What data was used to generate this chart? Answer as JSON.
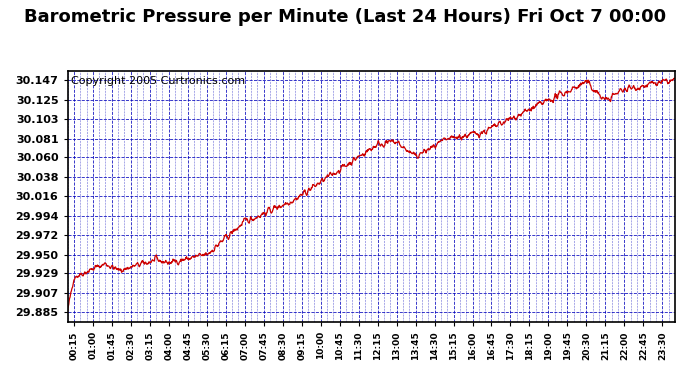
{
  "title": "Barometric Pressure per Minute (Last 24 Hours) Fri Oct 7 00:00",
  "copyright": "Copyright 2005 Curtronics.com",
  "yticks": [
    29.885,
    29.907,
    29.929,
    29.95,
    29.972,
    29.994,
    30.016,
    30.038,
    30.06,
    30.081,
    30.103,
    30.125,
    30.147
  ],
  "ylim": [
    29.874,
    30.158
  ],
  "xtick_labels": [
    "00:15",
    "01:00",
    "01:45",
    "02:30",
    "03:15",
    "04:00",
    "04:45",
    "05:30",
    "06:15",
    "07:00",
    "07:45",
    "08:30",
    "09:15",
    "10:00",
    "10:45",
    "11:30",
    "12:15",
    "13:00",
    "13:45",
    "14:30",
    "15:15",
    "16:00",
    "16:45",
    "17:30",
    "18:15",
    "19:00",
    "19:45",
    "20:30",
    "21:15",
    "22:00",
    "22:45",
    "23:30"
  ],
  "line_color": "#cc0000",
  "grid_color": "#0000bb",
  "bg_color": "#ffffff",
  "title_fontsize": 13,
  "copyright_fontsize": 8
}
